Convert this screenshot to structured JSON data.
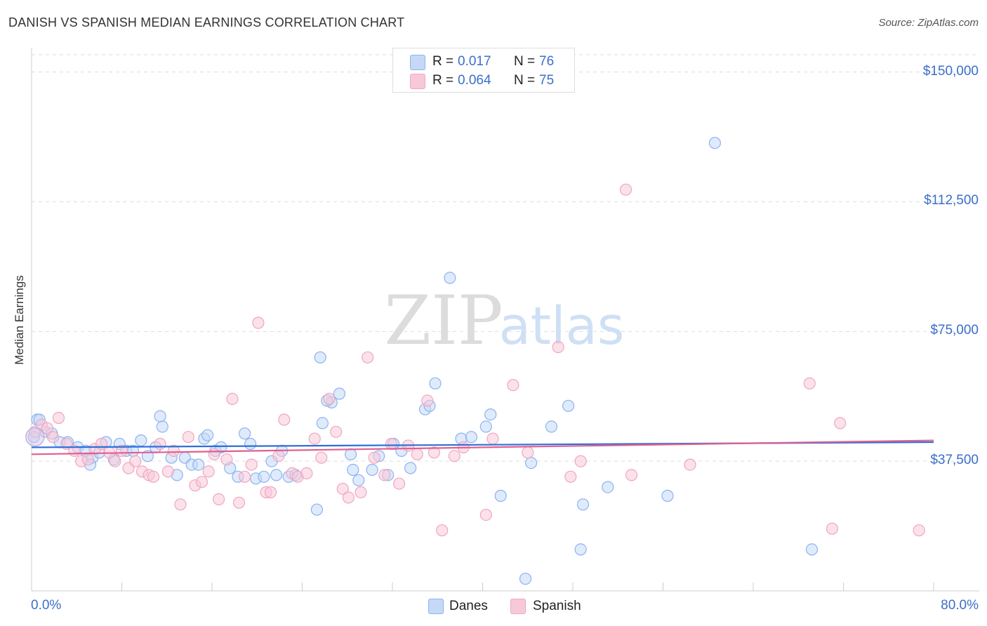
{
  "chart_data": {
    "type": "scatter",
    "title": "DANISH VS SPANISH MEDIAN EARNINGS CORRELATION CHART",
    "source": "Source: ZipAtlas.com",
    "xlabel": "",
    "ylabel": "Median Earnings",
    "xlim": [
      0,
      80
    ],
    "ylim": [
      0,
      155000
    ],
    "x_tick_labels": [
      "0.0%",
      "80.0%"
    ],
    "y_ticks": [
      {
        "value": 37500,
        "label": "$37,500"
      },
      {
        "value": 75000,
        "label": "$75,000"
      },
      {
        "value": 112500,
        "label": "$112,500"
      },
      {
        "value": 150000,
        "label": "$150,000"
      }
    ],
    "grid": true,
    "watermark": {
      "zip": "ZIP",
      "atlas": "atlas"
    },
    "legend": {
      "entries": [
        {
          "series": "Danes",
          "r_label": "R =",
          "r_value": "0.017",
          "n_label": "N =",
          "n_value": "76"
        },
        {
          "series": "Spanish",
          "r_label": "R =",
          "r_value": "0.064",
          "n_label": "N =",
          "n_value": "75"
        }
      ]
    },
    "series": [
      {
        "name": "Danes",
        "color": "#8ab4f0",
        "fill": "#c5d9f7",
        "line_color": "#2f6fd6",
        "trend": [
          [
            0,
            41500
          ],
          [
            80,
            43000
          ]
        ],
        "points": [
          [
            0.2,
            44500
          ],
          [
            0.5,
            49500
          ],
          [
            0.7,
            49500
          ],
          [
            1.2,
            46000
          ],
          [
            1.8,
            45500
          ],
          [
            2.5,
            43000
          ],
          [
            3.2,
            43000
          ],
          [
            4.1,
            41500
          ],
          [
            4.8,
            40500
          ],
          [
            5.4,
            38500
          ],
          [
            5.2,
            36500
          ],
          [
            6.0,
            40000
          ],
          [
            6.6,
            43000
          ],
          [
            7.3,
            38000
          ],
          [
            7.8,
            42500
          ],
          [
            8.4,
            40500
          ],
          [
            9.0,
            40500
          ],
          [
            9.7,
            43500
          ],
          [
            10.3,
            39000
          ],
          [
            11.0,
            41500
          ],
          [
            11.6,
            47500
          ],
          [
            12.4,
            38500
          ],
          [
            12.9,
            33500
          ],
          [
            13.6,
            38500
          ],
          [
            14.2,
            36500
          ],
          [
            14.8,
            36500
          ],
          [
            15.3,
            44000
          ],
          [
            15.6,
            45000
          ],
          [
            16.3,
            40500
          ],
          [
            16.8,
            41500
          ],
          [
            17.6,
            35500
          ],
          [
            18.3,
            33000
          ],
          [
            18.9,
            45500
          ],
          [
            19.4,
            42500
          ],
          [
            19.9,
            32500
          ],
          [
            20.6,
            33000
          ],
          [
            21.3,
            37500
          ],
          [
            21.7,
            33500
          ],
          [
            22.2,
            40500
          ],
          [
            22.8,
            33000
          ],
          [
            23.4,
            33500
          ],
          [
            25.6,
            67500
          ],
          [
            25.3,
            23500
          ],
          [
            26.6,
            54500
          ],
          [
            27.3,
            57000
          ],
          [
            26.2,
            55000
          ],
          [
            25.8,
            48500
          ],
          [
            28.3,
            39500
          ],
          [
            28.5,
            35000
          ],
          [
            29.0,
            32000
          ],
          [
            30.2,
            35000
          ],
          [
            30.8,
            39000
          ],
          [
            31.6,
            33500
          ],
          [
            32.1,
            42500
          ],
          [
            32.8,
            40500
          ],
          [
            33.6,
            35500
          ],
          [
            34.9,
            52500
          ],
          [
            35.3,
            53500
          ],
          [
            35.8,
            60000
          ],
          [
            37.1,
            90500
          ],
          [
            38.1,
            44000
          ],
          [
            39.0,
            44500
          ],
          [
            40.7,
            51000
          ],
          [
            41.6,
            27500
          ],
          [
            44.3,
            37000
          ],
          [
            46.1,
            47500
          ],
          [
            47.6,
            53500
          ],
          [
            48.7,
            12000
          ],
          [
            48.9,
            25000
          ],
          [
            51.1,
            30000
          ],
          [
            56.4,
            27500
          ],
          [
            60.6,
            129500
          ],
          [
            69.2,
            12000
          ],
          [
            40.3,
            47500
          ],
          [
            43.8,
            3500
          ],
          [
            11.4,
            50500
          ]
        ]
      },
      {
        "name": "Spanish",
        "color": "#f0a6c0",
        "fill": "#f7c9d8",
        "line_color": "#e06090",
        "trend": [
          [
            0,
            39500
          ],
          [
            80,
            43500
          ]
        ],
        "points": [
          [
            0.3,
            46000
          ],
          [
            0.9,
            48000
          ],
          [
            1.4,
            47000
          ],
          [
            1.9,
            44500
          ],
          [
            2.4,
            50000
          ],
          [
            3.1,
            42500
          ],
          [
            3.8,
            40500
          ],
          [
            4.4,
            37500
          ],
          [
            5.0,
            38000
          ],
          [
            5.6,
            41000
          ],
          [
            6.2,
            42500
          ],
          [
            6.9,
            40000
          ],
          [
            7.4,
            37500
          ],
          [
            8.0,
            40500
          ],
          [
            8.6,
            35500
          ],
          [
            9.2,
            37500
          ],
          [
            9.8,
            34500
          ],
          [
            10.4,
            33500
          ],
          [
            10.8,
            33000
          ],
          [
            11.4,
            42500
          ],
          [
            12.1,
            34500
          ],
          [
            12.6,
            40500
          ],
          [
            13.2,
            25000
          ],
          [
            13.9,
            44500
          ],
          [
            14.5,
            30500
          ],
          [
            15.1,
            31500
          ],
          [
            15.7,
            34500
          ],
          [
            16.2,
            39500
          ],
          [
            16.6,
            26500
          ],
          [
            17.3,
            38000
          ],
          [
            17.8,
            55500
          ],
          [
            18.4,
            25500
          ],
          [
            18.9,
            33000
          ],
          [
            19.5,
            36500
          ],
          [
            20.1,
            77500
          ],
          [
            20.8,
            28500
          ],
          [
            21.2,
            28500
          ],
          [
            21.9,
            39000
          ],
          [
            22.4,
            49500
          ],
          [
            23.1,
            34000
          ],
          [
            23.6,
            33000
          ],
          [
            24.4,
            34000
          ],
          [
            25.1,
            44000
          ],
          [
            25.7,
            38500
          ],
          [
            26.4,
            55500
          ],
          [
            27.0,
            46000
          ],
          [
            27.6,
            29500
          ],
          [
            28.1,
            27000
          ],
          [
            29.2,
            28500
          ],
          [
            29.8,
            67500
          ],
          [
            30.4,
            38500
          ],
          [
            31.3,
            33500
          ],
          [
            31.9,
            42500
          ],
          [
            32.6,
            31000
          ],
          [
            33.4,
            42000
          ],
          [
            34.2,
            39500
          ],
          [
            35.1,
            55000
          ],
          [
            35.7,
            40000
          ],
          [
            36.4,
            17500
          ],
          [
            37.5,
            39000
          ],
          [
            38.3,
            41500
          ],
          [
            40.3,
            22000
          ],
          [
            40.9,
            44000
          ],
          [
            42.7,
            59500
          ],
          [
            44.0,
            40000
          ],
          [
            46.7,
            70500
          ],
          [
            47.8,
            33000
          ],
          [
            48.7,
            37500
          ],
          [
            52.7,
            116000
          ],
          [
            53.2,
            33500
          ],
          [
            58.4,
            36500
          ],
          [
            69.0,
            60000
          ],
          [
            71.7,
            48500
          ],
          [
            71.0,
            18000
          ],
          [
            78.7,
            17500
          ]
        ]
      }
    ]
  }
}
